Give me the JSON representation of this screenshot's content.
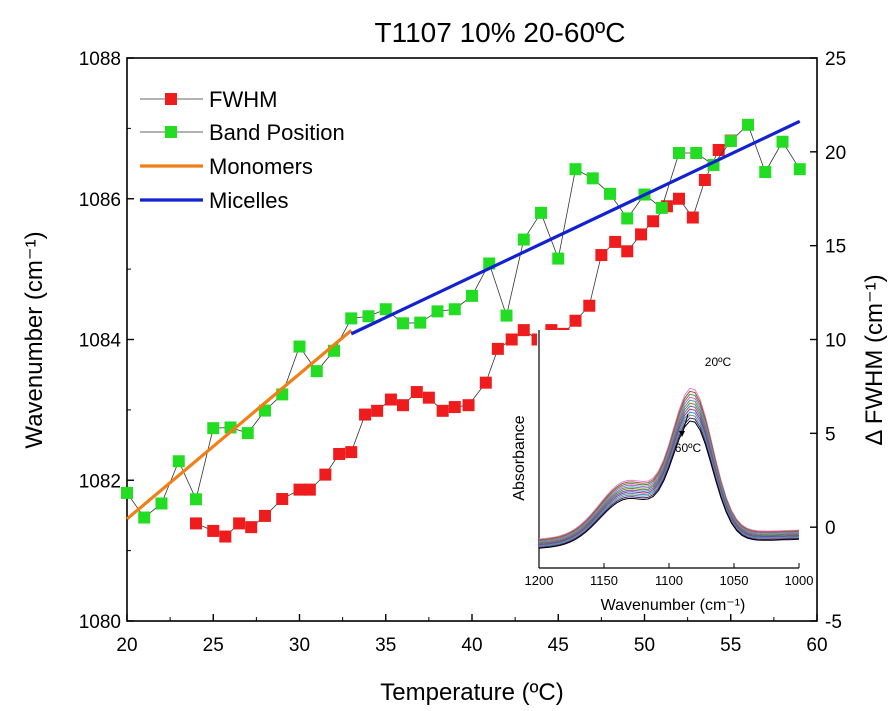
{
  "chart_data": {
    "type": "scatter",
    "title": "T1107 10% 20-60ºC",
    "xlabel": "Temperature (ºC)",
    "ylabel": "Wavenumber (cm⁻¹)",
    "y2label": "Δ FWHM (cm⁻¹)",
    "xlim": [
      20,
      60
    ],
    "ylim": [
      1080,
      1088
    ],
    "y2lim": [
      -5,
      25
    ],
    "x_ticks": [
      "20",
      "25",
      "30",
      "35",
      "40",
      "45",
      "50",
      "55",
      "60"
    ],
    "y_ticks": [
      "1080",
      "1082",
      "1084",
      "1086",
      "1088"
    ],
    "y2_ticks": [
      "-5",
      "0",
      "5",
      "10",
      "15",
      "20",
      "25"
    ],
    "legend_position": "top-left",
    "colors": {
      "fwhm": "#ee1c1c",
      "band": "#22dd22",
      "monomers": "#f07f17",
      "micelles": "#1222d2",
      "connector": "#333333"
    },
    "series": [
      {
        "name": "FWHM",
        "axis": "right",
        "marker": "square",
        "x": [
          24,
          25,
          25.7,
          26.5,
          27.2,
          28,
          29,
          30,
          30.6,
          31.5,
          32.3,
          33,
          33.8,
          34.5,
          35.3,
          36,
          36.8,
          37.5,
          38.3,
          39,
          39.8,
          40.8,
          41.5,
          42.3,
          43,
          43.8,
          44.6,
          45.3,
          46,
          46.8,
          47.5,
          48.3,
          49,
          49.8,
          50.5,
          51.3,
          52,
          52.8,
          53.5,
          54.3,
          55
        ],
        "values": [
          0.2,
          -0.2,
          -0.5,
          0.2,
          0,
          0.6,
          1.5,
          2,
          2,
          2.8,
          3.9,
          4,
          6,
          6.2,
          6.8,
          6.5,
          7.2,
          6.9,
          6.2,
          6.4,
          6.5,
          7.7,
          9.5,
          10,
          10.5,
          10,
          10.5,
          10.3,
          11,
          11.8,
          14.5,
          15.2,
          14.7,
          15.6,
          16.3,
          17.1,
          17.5,
          16.5,
          18.5,
          20.1,
          20.6
        ]
      },
      {
        "name": "Band Position",
        "axis": "left",
        "marker": "square",
        "x": [
          20,
          21,
          22,
          23,
          24,
          25,
          26,
          27,
          28,
          29,
          30,
          31,
          32,
          33,
          34,
          35,
          36,
          37,
          38,
          39,
          40,
          41,
          42,
          43,
          44,
          45,
          46,
          47,
          48,
          49,
          50,
          51,
          52,
          53,
          54,
          55,
          56,
          57,
          58,
          59
        ],
        "values": [
          1081.82,
          1081.47,
          1081.67,
          1082.27,
          1081.73,
          1082.74,
          1082.75,
          1082.67,
          1082.99,
          1083.22,
          1083.9,
          1083.55,
          1083.84,
          1084.3,
          1084.33,
          1084.43,
          1084.23,
          1084.24,
          1084.4,
          1084.43,
          1084.62,
          1085.08,
          1084.34,
          1085.42,
          1085.8,
          1085.15,
          1086.42,
          1086.29,
          1086.07,
          1085.72,
          1086.06,
          1085.87,
          1086.65,
          1086.65,
          1086.48,
          1086.82,
          1087.05,
          1086.38,
          1086.81,
          1086.42
        ]
      },
      {
        "name": "Monomers",
        "axis": "left",
        "type": "line",
        "x": [
          20,
          33
        ],
        "values": [
          1081.45,
          1084.13
        ]
      },
      {
        "name": "Micelles",
        "axis": "left",
        "type": "line",
        "x": [
          33,
          59
        ],
        "values": [
          1084.08,
          1087.1
        ]
      }
    ],
    "inset": {
      "ylabel": "Absorbance",
      "xlabel": "Wavenumber (cm⁻¹)",
      "x_ticks": [
        "1200",
        "1150",
        "1100",
        "1050",
        "1000"
      ],
      "xlim": [
        1200,
        1000
      ],
      "annotations": [
        "20ºC",
        "60ºC"
      ],
      "curve_colors": [
        "#d88ad8",
        "#c04040",
        "#2aa02a",
        "#e050e0",
        "#3a9a9a",
        "#7a7a20",
        "#6060c0",
        "#a03080",
        "#20a0c0",
        "#808080",
        "#402080",
        "#000000"
      ]
    }
  }
}
